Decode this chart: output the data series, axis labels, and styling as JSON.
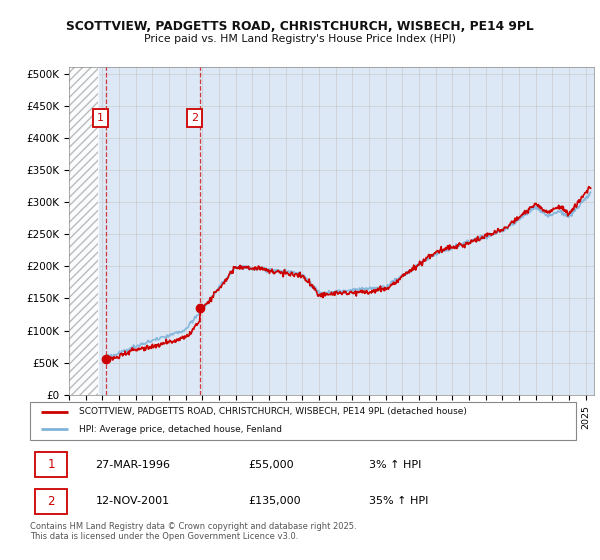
{
  "title_line1": "SCOTTVIEW, PADGETTS ROAD, CHRISTCHURCH, WISBECH, PE14 9PL",
  "title_line2": "Price paid vs. HM Land Registry's House Price Index (HPI)",
  "background_color": "#dce8f5",
  "hatch_region_end": 1995.75,
  "purchase1_x": 1996.23,
  "purchase1_y": 55000,
  "purchase2_x": 2001.87,
  "purchase2_y": 135000,
  "legend_label1": "SCOTTVIEW, PADGETTS ROAD, CHRISTCHURCH, WISBECH, PE14 9PL (detached house)",
  "legend_label2": "HPI: Average price, detached house, Fenland",
  "annotation1_date": "27-MAR-1996",
  "annotation1_price": "£55,000",
  "annotation1_hpi": "3% ↑ HPI",
  "annotation2_date": "12-NOV-2001",
  "annotation2_price": "£135,000",
  "annotation2_hpi": "35% ↑ HPI",
  "copyright_text": "Contains HM Land Registry data © Crown copyright and database right 2025.\nThis data is licensed under the Open Government Licence v3.0.",
  "line1_color": "#cc0000",
  "line2_color": "#7fb3d9",
  "dashed_line_color": "#cc0000",
  "ylim_max": 510000,
  "yticks": [
    0,
    50000,
    100000,
    150000,
    200000,
    250000,
    300000,
    350000,
    400000,
    450000,
    500000
  ],
  "ytick_labels": [
    "£0",
    "£50K",
    "£100K",
    "£150K",
    "£200K",
    "£250K",
    "£300K",
    "£350K",
    "£400K",
    "£450K",
    "£500K"
  ],
  "xmin": 1994,
  "xmax": 2025.5
}
